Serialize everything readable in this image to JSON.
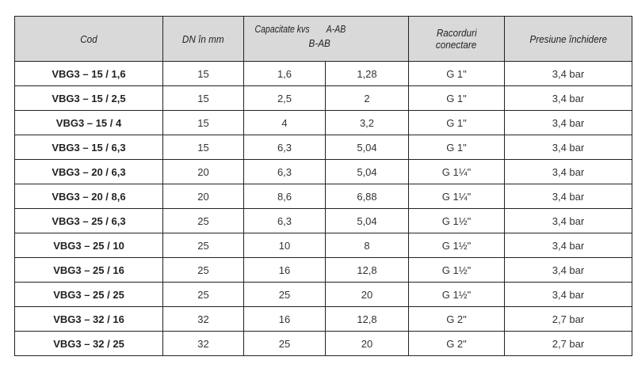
{
  "headers": {
    "cod": "Cod",
    "dn": "DN în mm",
    "capacitate": "Capacitate kvs",
    "a_ab": "A-AB",
    "b_ab": "B-AB",
    "racorduri_1": "Racorduri",
    "racorduri_2": "conectare",
    "presiune": "Presiune închidere"
  },
  "rows": [
    {
      "cod": "VBG3 – 15 / 1,6",
      "dn": "15",
      "a_ab": "1,6",
      "b_ab": "1,28",
      "racord": "G 1\"",
      "presiune": "3,4 bar"
    },
    {
      "cod": "VBG3 – 15 / 2,5",
      "dn": "15",
      "a_ab": "2,5",
      "b_ab": "2",
      "racord": "G 1\"",
      "presiune": "3,4 bar"
    },
    {
      "cod": "VBG3 – 15 / 4",
      "dn": "15",
      "a_ab": "4",
      "b_ab": "3,2",
      "racord": "G 1\"",
      "presiune": "3,4 bar"
    },
    {
      "cod": "VBG3 – 15 / 6,3",
      "dn": "15",
      "a_ab": "6,3",
      "b_ab": "5,04",
      "racord": "G 1\"",
      "presiune": "3,4 bar"
    },
    {
      "cod": "VBG3 – 20 / 6,3",
      "dn": "20",
      "a_ab": "6,3",
      "b_ab": "5,04",
      "racord": "G 1¼\"",
      "presiune": "3,4 bar"
    },
    {
      "cod": "VBG3 – 20 / 8,6",
      "dn": "20",
      "a_ab": "8,6",
      "b_ab": "6,88",
      "racord": "G 1¼\"",
      "presiune": "3,4 bar"
    },
    {
      "cod": "VBG3 – 25 / 6,3",
      "dn": "25",
      "a_ab": "6,3",
      "b_ab": "5,04",
      "racord": "G 1½\"",
      "presiune": "3,4 bar"
    },
    {
      "cod": "VBG3 – 25 / 10",
      "dn": "25",
      "a_ab": "10",
      "b_ab": "8",
      "racord": "G 1½\"",
      "presiune": "3,4 bar"
    },
    {
      "cod": "VBG3 – 25 / 16",
      "dn": "25",
      "a_ab": "16",
      "b_ab": "12,8",
      "racord": "G 1½\"",
      "presiune": "3,4 bar"
    },
    {
      "cod": "VBG3 – 25 / 25",
      "dn": "25",
      "a_ab": "25",
      "b_ab": "20",
      "racord": "G 1½\"",
      "presiune": "3,4 bar"
    },
    {
      "cod": "VBG3 – 32 / 16",
      "dn": "32",
      "a_ab": "16",
      "b_ab": "12,8",
      "racord": "G 2\"",
      "presiune": "2,7 bar"
    },
    {
      "cod": "VBG3 – 32 / 25",
      "dn": "32",
      "a_ab": "25",
      "b_ab": "20",
      "racord": "G 2\"",
      "presiune": "2,7 bar"
    }
  ]
}
